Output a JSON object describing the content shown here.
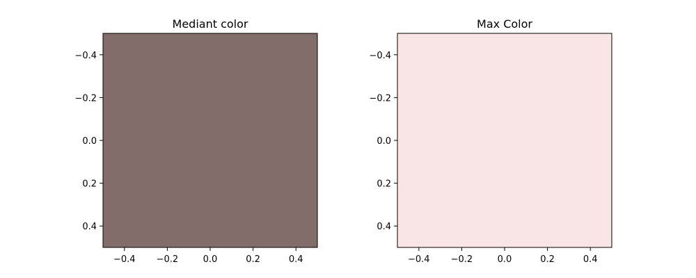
{
  "chart_data": [
    {
      "type": "heatmap",
      "title": "Mediant color",
      "fill_color": "#826d6a",
      "xlim": [
        -0.5,
        0.5
      ],
      "ylim": [
        0.5,
        -0.5
      ],
      "y_inverted": true,
      "xticks": [
        -0.4,
        -0.2,
        0.0,
        0.2,
        0.4
      ],
      "yticks": [
        -0.4,
        -0.2,
        0.0,
        0.2,
        0.4
      ],
      "xtick_labels": [
        "−0.4",
        "−0.2",
        "0.0",
        "0.2",
        "0.4"
      ],
      "ytick_labels": [
        "−0.4",
        "−0.2",
        "0.0",
        "0.2",
        "0.4"
      ],
      "grid": false
    },
    {
      "type": "heatmap",
      "title": "Max Color",
      "fill_color": "#fae5e5",
      "xlim": [
        -0.5,
        0.5
      ],
      "ylim": [
        0.5,
        -0.5
      ],
      "y_inverted": true,
      "xticks": [
        -0.4,
        -0.2,
        0.0,
        0.2,
        0.4
      ],
      "yticks": [
        -0.4,
        -0.2,
        0.0,
        0.2,
        0.4
      ],
      "xtick_labels": [
        "−0.4",
        "−0.2",
        "0.0",
        "0.2",
        "0.4"
      ],
      "ytick_labels": [
        "−0.4",
        "−0.2",
        "0.0",
        "0.2",
        "0.4"
      ],
      "grid": false
    }
  ]
}
